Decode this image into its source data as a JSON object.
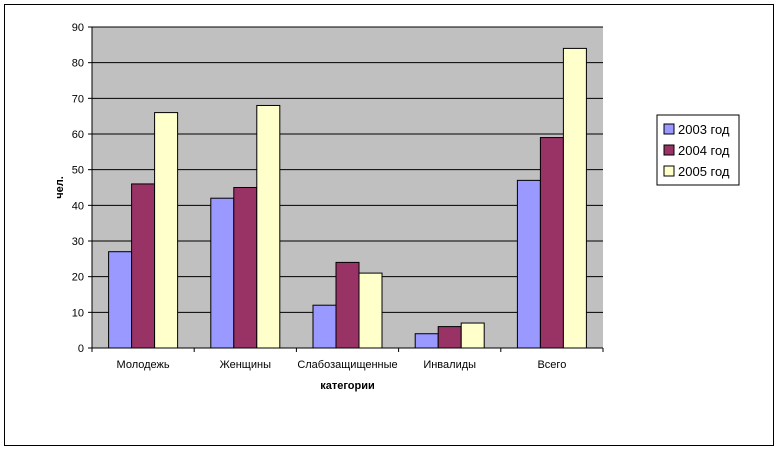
{
  "chart_data": {
    "type": "bar",
    "categories": [
      "Молодежь",
      "Женщины",
      "Слабозащищенные",
      "Инвалиды",
      "Всего"
    ],
    "series": [
      {
        "name": "2003 год",
        "values": [
          27,
          42,
          12,
          4,
          47
        ],
        "color": "#9999ff"
      },
      {
        "name": "2004 год",
        "values": [
          46,
          45,
          24,
          6,
          59
        ],
        "color": "#993366"
      },
      {
        "name": "2005 год",
        "values": [
          66,
          68,
          21,
          7,
          84
        ],
        "color": "#ffffcc"
      }
    ],
    "title": "",
    "xlabel": "категории",
    "ylabel": "чел.",
    "ylim": [
      0,
      90
    ],
    "yticks": [
      0,
      10,
      20,
      30,
      40,
      50,
      60,
      70,
      80,
      90
    ],
    "grid": true,
    "plot_background": "#c0c0c0",
    "legend_position": "right"
  }
}
